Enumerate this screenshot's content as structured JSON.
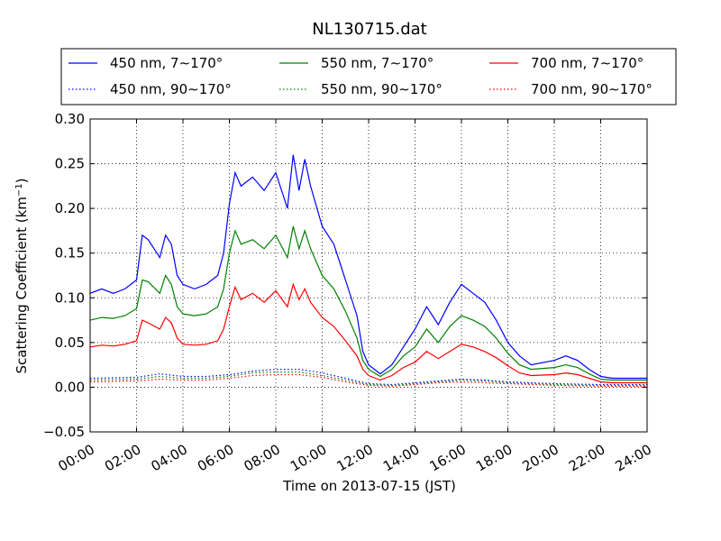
{
  "chart_data": {
    "type": "line",
    "title": "NL130715.dat",
    "xlabel": "Time on 2013-07-15 (JST)",
    "ylabel": "Scattering Coefficient (km",
    "ylabel_sup": "−1",
    "ylabel_close": ")",
    "x_unit": "hour",
    "xlim": [
      0,
      24
    ],
    "ylim": [
      -0.05,
      0.3
    ],
    "grid": true,
    "grid_style": "dotted",
    "legend_position": "top",
    "x_ticks": [
      0,
      2,
      4,
      6,
      8,
      10,
      12,
      14,
      16,
      18,
      20,
      22,
      24
    ],
    "x_tick_labels": [
      "00:00",
      "02:00",
      "04:00",
      "06:00",
      "08:00",
      "10:00",
      "12:00",
      "14:00",
      "16:00",
      "18:00",
      "20:00",
      "22:00",
      "24:00"
    ],
    "y_ticks": [
      -0.05,
      0.0,
      0.05,
      0.1,
      0.15,
      0.2,
      0.25,
      0.3
    ],
    "y_tick_labels": [
      "−0.05",
      "0.00",
      "0.05",
      "0.10",
      "0.15",
      "0.20",
      "0.25",
      "0.30"
    ],
    "series": [
      {
        "name": "450 nm, 7∼170°",
        "color": "#0000ff",
        "style": "solid",
        "x": [
          0,
          0.5,
          1,
          1.5,
          2,
          2.25,
          2.5,
          3,
          3.25,
          3.5,
          3.75,
          4,
          4.5,
          5,
          5.5,
          5.75,
          6,
          6.25,
          6.5,
          7,
          7.5,
          8,
          8.5,
          8.75,
          9,
          9.25,
          9.5,
          10,
          10.5,
          11,
          11.5,
          11.75,
          12,
          12.5,
          13,
          13.5,
          14,
          14.5,
          15,
          15.5,
          16,
          16.5,
          17,
          17.5,
          18,
          18.5,
          19,
          20,
          20.5,
          21,
          21.5,
          22,
          22.5,
          23,
          24
        ],
        "y": [
          0.105,
          0.11,
          0.105,
          0.11,
          0.12,
          0.17,
          0.165,
          0.145,
          0.17,
          0.16,
          0.125,
          0.115,
          0.11,
          0.115,
          0.125,
          0.15,
          0.205,
          0.24,
          0.225,
          0.235,
          0.22,
          0.24,
          0.2,
          0.26,
          0.22,
          0.255,
          0.225,
          0.18,
          0.16,
          0.12,
          0.08,
          0.04,
          0.025,
          0.015,
          0.025,
          0.045,
          0.065,
          0.09,
          0.07,
          0.095,
          0.115,
          0.105,
          0.095,
          0.075,
          0.05,
          0.035,
          0.025,
          0.03,
          0.035,
          0.03,
          0.02,
          0.012,
          0.01,
          0.01,
          0.01
        ]
      },
      {
        "name": "550 nm, 7∼170°",
        "color": "#008000",
        "style": "solid",
        "x": [
          0,
          0.5,
          1,
          1.5,
          2,
          2.25,
          2.5,
          3,
          3.25,
          3.5,
          3.75,
          4,
          4.5,
          5,
          5.5,
          5.75,
          6,
          6.25,
          6.5,
          7,
          7.5,
          8,
          8.5,
          8.75,
          9,
          9.25,
          9.5,
          10,
          10.5,
          11,
          11.5,
          11.75,
          12,
          12.5,
          13,
          13.5,
          14,
          14.5,
          15,
          15.5,
          16,
          16.5,
          17,
          17.5,
          18,
          18.5,
          19,
          20,
          20.5,
          21,
          21.5,
          22,
          22.5,
          23,
          24
        ],
        "y": [
          0.075,
          0.078,
          0.077,
          0.08,
          0.088,
          0.12,
          0.118,
          0.105,
          0.125,
          0.115,
          0.09,
          0.082,
          0.08,
          0.082,
          0.09,
          0.11,
          0.15,
          0.175,
          0.16,
          0.165,
          0.155,
          0.17,
          0.145,
          0.18,
          0.155,
          0.175,
          0.155,
          0.125,
          0.11,
          0.085,
          0.055,
          0.03,
          0.02,
          0.012,
          0.02,
          0.035,
          0.045,
          0.065,
          0.05,
          0.068,
          0.08,
          0.075,
          0.068,
          0.055,
          0.038,
          0.025,
          0.02,
          0.022,
          0.025,
          0.022,
          0.015,
          0.009,
          0.008,
          0.008,
          0.008
        ]
      },
      {
        "name": "700 nm, 7∼170°",
        "color": "#ff0000",
        "style": "solid",
        "x": [
          0,
          0.5,
          1,
          1.5,
          2,
          2.25,
          2.5,
          3,
          3.25,
          3.5,
          3.75,
          4,
          4.5,
          5,
          5.5,
          5.75,
          6,
          6.25,
          6.5,
          7,
          7.5,
          8,
          8.5,
          8.75,
          9,
          9.25,
          9.5,
          10,
          10.5,
          11,
          11.5,
          11.75,
          12,
          12.5,
          13,
          13.5,
          14,
          14.5,
          15,
          15.5,
          16,
          16.5,
          17,
          17.5,
          18,
          18.5,
          19,
          20,
          20.5,
          21,
          21.5,
          22,
          22.5,
          23,
          24
        ],
        "y": [
          0.045,
          0.047,
          0.046,
          0.048,
          0.052,
          0.075,
          0.072,
          0.065,
          0.078,
          0.072,
          0.055,
          0.048,
          0.047,
          0.048,
          0.052,
          0.065,
          0.09,
          0.112,
          0.098,
          0.105,
          0.095,
          0.108,
          0.09,
          0.115,
          0.098,
          0.11,
          0.095,
          0.078,
          0.068,
          0.052,
          0.035,
          0.02,
          0.013,
          0.008,
          0.013,
          0.022,
          0.028,
          0.04,
          0.032,
          0.04,
          0.048,
          0.045,
          0.04,
          0.033,
          0.024,
          0.016,
          0.013,
          0.014,
          0.016,
          0.014,
          0.01,
          0.006,
          0.005,
          0.005,
          0.005
        ]
      },
      {
        "name": "450 nm, 90∼170°",
        "color": "#0000ff",
        "style": "dotted",
        "x": [
          0,
          2,
          3,
          4,
          5,
          6,
          7,
          8,
          9,
          10,
          11,
          12,
          13,
          14,
          15,
          16,
          17,
          18,
          20,
          22,
          24
        ],
        "y": [
          0.01,
          0.011,
          0.015,
          0.012,
          0.012,
          0.014,
          0.018,
          0.02,
          0.02,
          0.016,
          0.01,
          0.004,
          0.003,
          0.005,
          0.007,
          0.009,
          0.008,
          0.006,
          0.004,
          0.003,
          0.003
        ]
      },
      {
        "name": "550 nm, 90∼170°",
        "color": "#008000",
        "style": "dotted",
        "x": [
          0,
          2,
          3,
          4,
          5,
          6,
          7,
          8,
          9,
          10,
          11,
          12,
          13,
          14,
          15,
          16,
          17,
          18,
          20,
          22,
          24
        ],
        "y": [
          0.008,
          0.009,
          0.012,
          0.01,
          0.01,
          0.012,
          0.016,
          0.017,
          0.017,
          0.013,
          0.008,
          0.003,
          0.002,
          0.004,
          0.006,
          0.008,
          0.007,
          0.005,
          0.003,
          0.002,
          0.002
        ]
      },
      {
        "name": "700 nm, 90∼170°",
        "color": "#ff0000",
        "style": "dotted",
        "x": [
          0,
          2,
          3,
          4,
          5,
          6,
          7,
          8,
          9,
          10,
          11,
          12,
          13,
          14,
          15,
          16,
          17,
          18,
          20,
          22,
          24
        ],
        "y": [
          0.006,
          0.007,
          0.009,
          0.008,
          0.008,
          0.01,
          0.013,
          0.014,
          0.014,
          0.011,
          0.006,
          0.002,
          0.001,
          0.003,
          0.005,
          0.006,
          0.005,
          0.004,
          0.002,
          0.001,
          0.001
        ]
      }
    ]
  }
}
